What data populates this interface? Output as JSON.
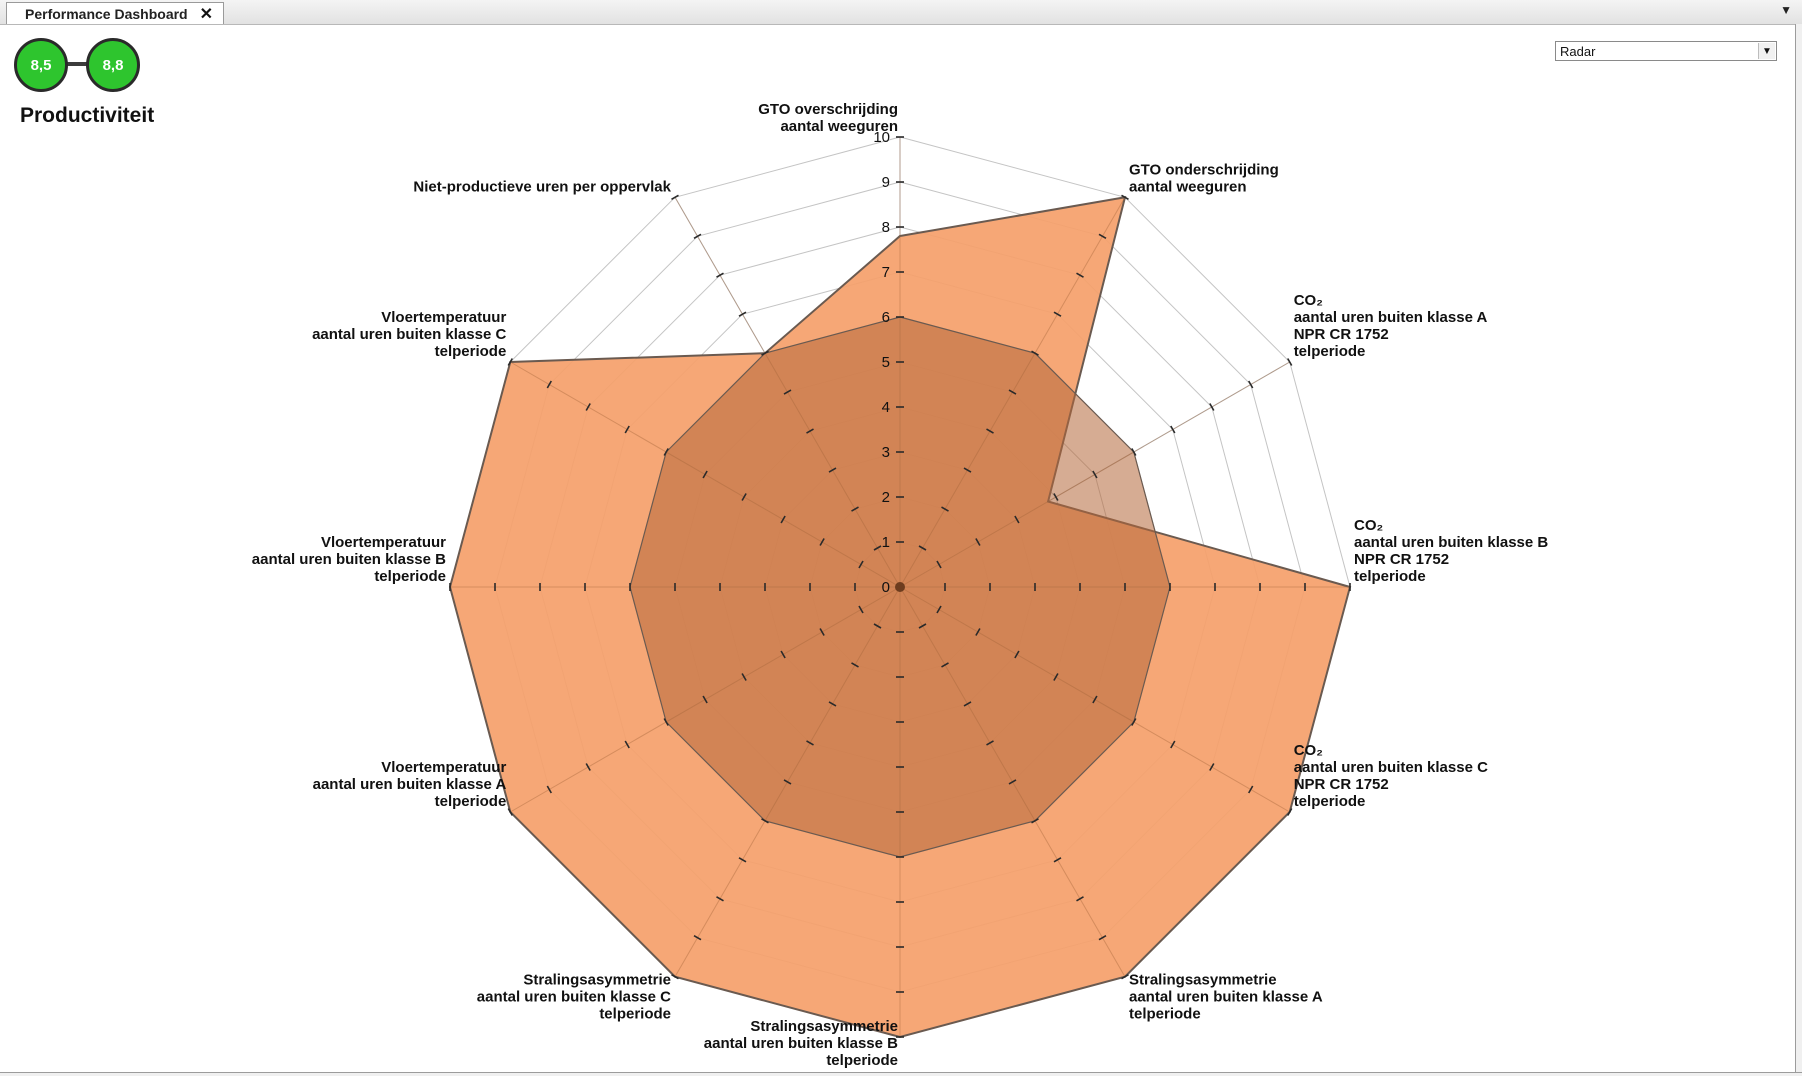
{
  "tab": {
    "title": "Performance Dashboard",
    "close": "✕",
    "menu": "▼"
  },
  "scores": {
    "first": "8,5",
    "second": "8,8",
    "color": "#2ec52e"
  },
  "section_title": "Productiviteit",
  "chart_selector": {
    "value": "Radar",
    "arrow": "▼"
  },
  "chart_data": {
    "type": "radar",
    "range": [
      0,
      10
    ],
    "ticks": [
      0,
      1,
      2,
      3,
      4,
      5,
      6,
      7,
      8,
      9,
      10
    ],
    "axes": [
      [
        "GTO overschrijding",
        "aantal weeguren"
      ],
      [
        "GTO onderschrijding",
        "aantal weeguren"
      ],
      [
        "CO₂",
        "aantal uren buiten klasse A",
        "NPR CR 1752",
        "telperiode"
      ],
      [
        "CO₂",
        "aantal uren buiten klasse B",
        "NPR CR 1752",
        "telperiode"
      ],
      [
        "CO₂",
        "aantal uren buiten klasse C",
        "NPR CR 1752",
        "telperiode"
      ],
      [
        "Stralingsasymmetrie",
        "aantal uren buiten klasse A",
        "telperiode"
      ],
      [
        "Stralingsasymmetrie",
        "aantal uren buiten klasse B",
        "telperiode"
      ],
      [
        "Stralingsasymmetrie",
        "aantal uren buiten klasse C",
        "telperiode"
      ],
      [
        "Vloertemperatuur",
        "aantal uren buiten klasse A",
        "telperiode"
      ],
      [
        "Vloertemperatuur",
        "aantal uren buiten klasse B",
        "telperiode"
      ],
      [
        "Vloertemperatuur",
        "aantal uren buiten klasse C",
        "telperiode"
      ],
      [
        "Niet-productieve uren per oppervlak"
      ]
    ],
    "series": [
      {
        "values": [
          7.8,
          10,
          3.8,
          10,
          10,
          10,
          10,
          10,
          10,
          10,
          10,
          6.0
        ],
        "color": "#f5a06a"
      },
      {
        "values": [
          6,
          6,
          6,
          6,
          6,
          6,
          6,
          6,
          6,
          6,
          6,
          6
        ],
        "color": "#b5673a"
      }
    ]
  }
}
